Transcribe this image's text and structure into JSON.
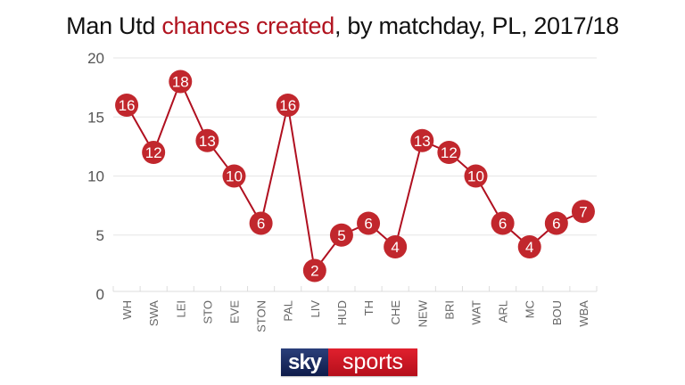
{
  "header": {
    "title_prefix": "Man Utd ",
    "title_highlight": "chances created",
    "title_suffix": ", by matchday, PL, 2017/18"
  },
  "colors": {
    "accent": "#b1131f",
    "point": "#c1272d",
    "grid": "#e6e6e6",
    "sky_blue": "#1c2d63",
    "sky_red": "#d01a27"
  },
  "logo": {
    "sky": "sky",
    "sports": "sports"
  },
  "chart_data": {
    "type": "line",
    "title": "Man Utd chances created, by matchday, PL, 2017/18",
    "xlabel": "",
    "ylabel": "",
    "ylim": [
      0,
      20
    ],
    "yticks": [
      0,
      5,
      10,
      15,
      20
    ],
    "grid": true,
    "legend": null,
    "categories": [
      "WH",
      "SWA",
      "LEI",
      "STO",
      "EVE",
      "STON",
      "PAL",
      "LIV",
      "HUD",
      "TH",
      "CHE",
      "NEW",
      "BRI",
      "WAT",
      "ARL",
      "MC",
      "BOU",
      "WBA"
    ],
    "series": [
      {
        "name": "Chances created",
        "values": [
          16,
          12,
          18,
          13,
          10,
          6,
          16,
          2,
          5,
          6,
          4,
          13,
          12,
          10,
          6,
          4,
          6,
          7
        ]
      }
    ]
  }
}
